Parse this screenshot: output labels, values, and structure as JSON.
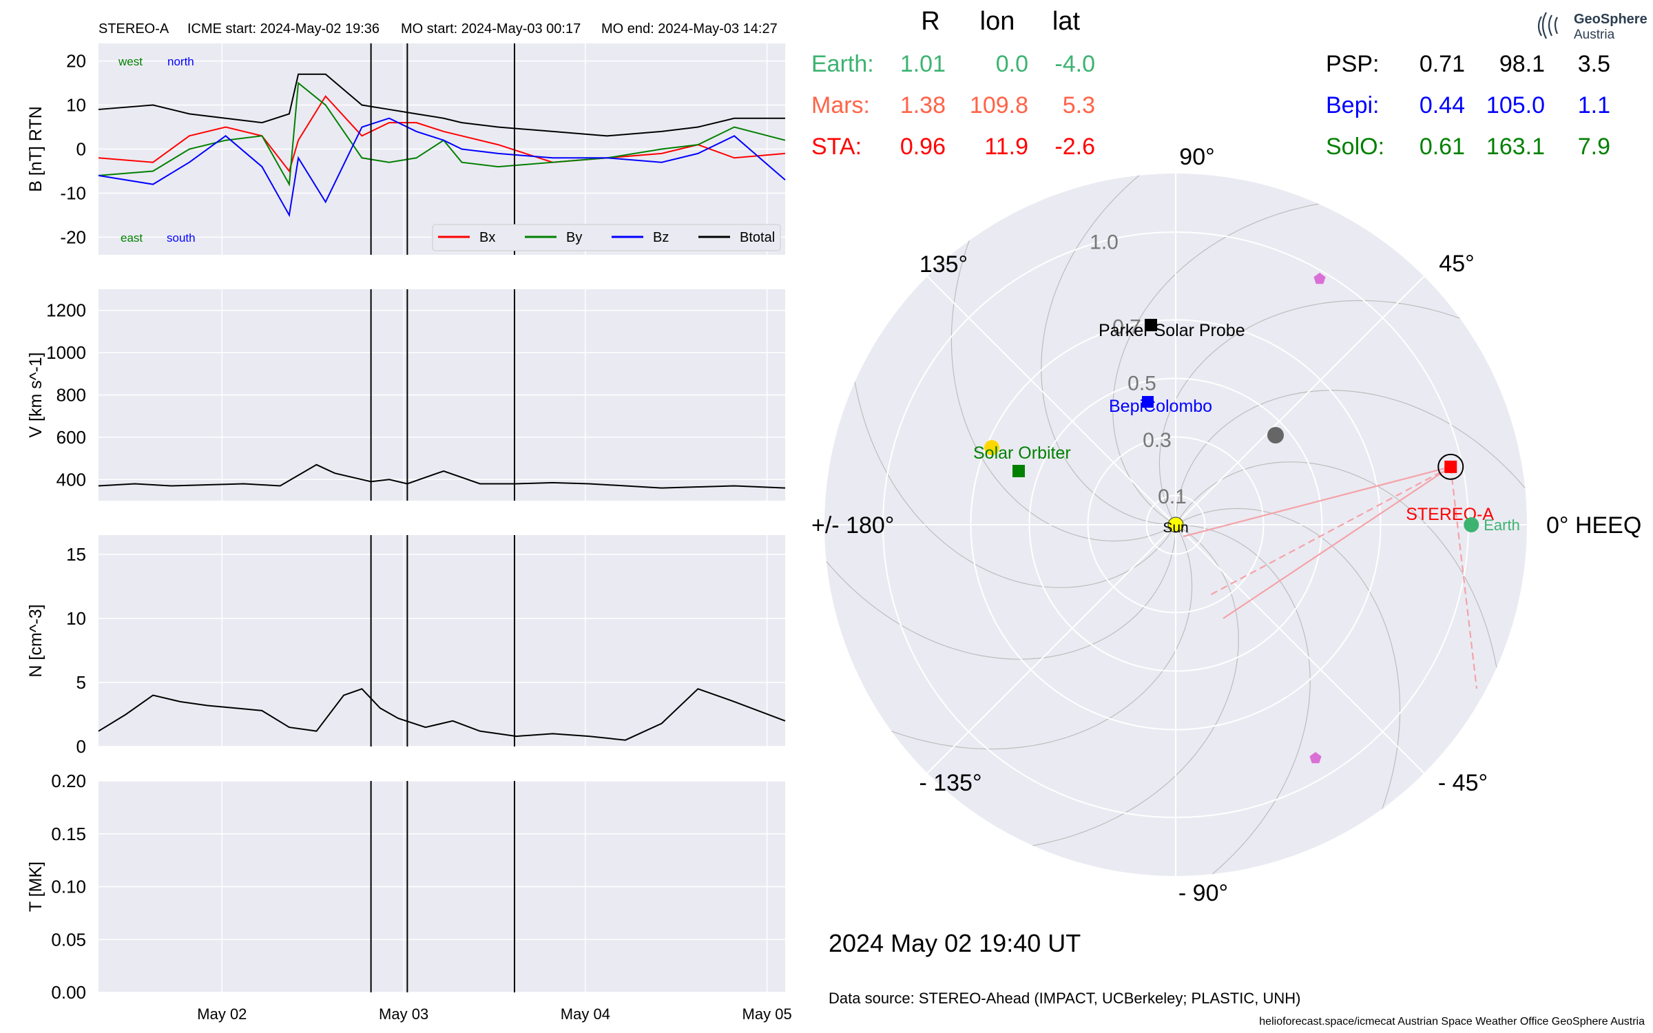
{
  "header": {
    "spacecraft": "STEREO-A",
    "icme_start": "ICME start: 2024-May-02 19:36",
    "mo_start": "MO start: 2024-May-03 00:17",
    "mo_end": "MO end: 2024-May-03 14:27"
  },
  "logo": {
    "line1": "GeoSphere",
    "line2": "Austria"
  },
  "colors": {
    "panel_bg": "#eaeaf2",
    "bx": "#ff0000",
    "by": "#008000",
    "bz": "#0000ff",
    "btotal": "#000000",
    "earth": "#3cb371",
    "mars": "#ff6347",
    "sta": "#ff0000",
    "psp": "#000000",
    "bepi": "#0000ff",
    "solo": "#008000"
  },
  "position_table": {
    "columns": [
      "R",
      "lon",
      "lat"
    ],
    "left_rows": [
      {
        "name": "Earth:",
        "r": "1.01",
        "lon": "0.0",
        "lat": "-4.0",
        "color": "#3cb371"
      },
      {
        "name": "Mars:",
        "r": "1.38",
        "lon": "109.8",
        "lat": "5.3",
        "color": "#ff6347"
      },
      {
        "name": "STA:",
        "r": "0.96",
        "lon": "11.9",
        "lat": "-2.6",
        "color": "#ff0000"
      }
    ],
    "right_rows": [
      {
        "name": "PSP:",
        "r": "0.71",
        "lon": "98.1",
        "lat": "3.5",
        "color": "#000000"
      },
      {
        "name": "Bepi:",
        "r": "0.44",
        "lon": "105.0",
        "lat": "1.1",
        "color": "#0000ff"
      },
      {
        "name": "SolO:",
        "r": "0.61",
        "lon": "163.1",
        "lat": "7.9",
        "color": "#008000"
      }
    ]
  },
  "timestamp": "2024 May 02  19:40 UT",
  "data_source": "Data source: STEREO-Ahead (IMPACT, UCBerkeley; PLASTIC, UNH)",
  "footer": "helioforecast.space/icmecat   Austrian Space Weather Office   GeoSphere Austria",
  "chart_data": [
    {
      "type": "line",
      "ylabel": "B [nT] RTN",
      "ylim": [
        -24,
        24
      ],
      "yticks": [
        20,
        10,
        0,
        -10,
        -20
      ],
      "annotations": {
        "top_left": [
          "west",
          "north"
        ],
        "bottom_left": [
          "east",
          "south"
        ]
      },
      "legend": {
        "placement": "bottom-right",
        "entries": [
          "Bx",
          "By",
          "Bz",
          "Btotal"
        ]
      },
      "series": [
        {
          "name": "Bx",
          "color": "#ff0000",
          "x": [
            0,
            0.3,
            0.5,
            0.7,
            0.9,
            1.05,
            1.1,
            1.25,
            1.45,
            1.6,
            1.75,
            1.9,
            2.0,
            2.2,
            2.5,
            2.8,
            3.1,
            3.3,
            3.5,
            3.78
          ],
          "y": [
            -2,
            -3,
            3,
            5,
            3,
            -5,
            2,
            12,
            3,
            6,
            6,
            4,
            3,
            1,
            -3,
            -2,
            -1,
            1,
            -2,
            -1
          ]
        },
        {
          "name": "By",
          "color": "#008000",
          "x": [
            0,
            0.3,
            0.5,
            0.7,
            0.9,
            1.05,
            1.1,
            1.25,
            1.45,
            1.6,
            1.75,
            1.9,
            2.0,
            2.2,
            2.5,
            2.8,
            3.1,
            3.3,
            3.5,
            3.78
          ],
          "y": [
            -6,
            -5,
            0,
            2,
            3,
            -8,
            15,
            10,
            -2,
            -3,
            -2,
            2,
            -3,
            -4,
            -3,
            -2,
            0,
            1,
            5,
            2
          ]
        },
        {
          "name": "Bz",
          "color": "#0000ff",
          "x": [
            0,
            0.3,
            0.5,
            0.7,
            0.9,
            1.05,
            1.1,
            1.25,
            1.45,
            1.6,
            1.75,
            1.9,
            2.0,
            2.2,
            2.5,
            2.8,
            3.1,
            3.3,
            3.5,
            3.78
          ],
          "y": [
            -6,
            -8,
            -3,
            3,
            -4,
            -15,
            -2,
            -12,
            5,
            7,
            4,
            2,
            0,
            -1,
            -2,
            -2,
            -3,
            -1,
            3,
            -7
          ]
        },
        {
          "name": "Btotal",
          "color": "#000000",
          "x": [
            0,
            0.3,
            0.5,
            0.7,
            0.9,
            1.05,
            1.1,
            1.25,
            1.45,
            1.6,
            1.75,
            1.9,
            2.0,
            2.2,
            2.5,
            2.8,
            3.1,
            3.3,
            3.5,
            3.78
          ],
          "y": [
            9,
            10,
            8,
            7,
            6,
            8,
            17,
            17,
            10,
            9,
            8,
            7,
            6,
            5,
            4,
            3,
            4,
            5,
            7,
            7
          ]
        }
      ]
    },
    {
      "type": "line",
      "ylabel": "V [km s^-1]",
      "ylim": [
        300,
        1300
      ],
      "yticks": [
        1200,
        1000,
        800,
        600,
        400
      ],
      "series": [
        {
          "name": "V",
          "color": "#000000",
          "x": [
            0.0,
            0.2,
            0.4,
            0.6,
            0.8,
            1.0,
            1.2,
            1.3,
            1.45,
            1.5,
            1.6,
            1.7,
            1.9,
            2.1,
            2.3,
            2.5,
            2.7,
            2.9,
            3.1,
            3.3,
            3.5,
            3.78
          ],
          "y": [
            370,
            380,
            370,
            375,
            380,
            370,
            470,
            430,
            400,
            390,
            400,
            380,
            440,
            380,
            380,
            385,
            380,
            370,
            360,
            365,
            370,
            360
          ]
        }
      ]
    },
    {
      "type": "line",
      "ylabel": "N [cm^-3]",
      "ylim": [
        0,
        16.5
      ],
      "yticks": [
        15,
        10,
        5,
        0
      ],
      "series": [
        {
          "name": "N",
          "color": "#000000",
          "x": [
            0.0,
            0.15,
            0.3,
            0.45,
            0.6,
            0.75,
            0.9,
            1.05,
            1.2,
            1.35,
            1.45,
            1.55,
            1.65,
            1.8,
            1.95,
            2.1,
            2.3,
            2.5,
            2.7,
            2.9,
            3.1,
            3.3,
            3.5,
            3.78
          ],
          "y": [
            1.2,
            2.5,
            4,
            3.5,
            3.2,
            3,
            2.8,
            1.5,
            1.2,
            4,
            4.5,
            3,
            2.2,
            1.5,
            2,
            1.2,
            0.8,
            1,
            0.8,
            0.5,
            1.8,
            4.5,
            3.5,
            2
          ]
        }
      ]
    },
    {
      "type": "line",
      "ylabel": "T [MK]",
      "ylim": [
        0,
        0.2
      ],
      "yticks": [
        "0.20",
        "0.15",
        "0.10",
        "0.05",
        "0.00"
      ],
      "series": []
    }
  ],
  "shared_x": {
    "ticks": [
      {
        "value": 0.68,
        "label": "May 02"
      },
      {
        "value": 1.68,
        "label": "May 03"
      },
      {
        "value": 2.68,
        "label": "May 04"
      },
      {
        "value": 3.68,
        "label": "May 05"
      }
    ],
    "range": [
      0,
      3.78
    ],
    "event_lines": [
      1.5,
      1.7,
      2.29
    ]
  },
  "polar_plot": {
    "angle_labels": [
      {
        "angle": 90,
        "label": "90°"
      },
      {
        "angle": 45,
        "label": "45°"
      },
      {
        "angle": 0,
        "label": "0° HEEQ"
      },
      {
        "angle": -45,
        "label": "- 45°"
      },
      {
        "angle": -90,
        "label": "- 90°"
      },
      {
        "angle": -135,
        "label": "- 135°"
      },
      {
        "angle": 180,
        "label": "+/- 180°"
      },
      {
        "angle": 135,
        "label": "135°"
      }
    ],
    "radial_labels": [
      "0.1",
      "0.3",
      "0.5",
      "0.7",
      "1.0"
    ],
    "radial_values": [
      0.1,
      0.3,
      0.5,
      0.7,
      1.0
    ],
    "objects": [
      {
        "name": "Sun",
        "r": 0,
        "lon": 0,
        "label": "Sun",
        "color": "#ffff00"
      },
      {
        "name": "STEREO-A",
        "r": 0.96,
        "lon": 11.9,
        "label": "STEREO-A",
        "color": "#ff0000"
      },
      {
        "name": "Earth",
        "r": 1.01,
        "lon": 0.0,
        "label": "Earth",
        "color": "#3cb371"
      },
      {
        "name": "Parker Solar Probe",
        "r": 0.71,
        "lon": 98.1,
        "label": "Parker Solar Probe",
        "color": "#000000"
      },
      {
        "name": "BepiColombo",
        "r": 0.44,
        "lon": 105.0,
        "label": "BepiColombo",
        "color": "#0000ff"
      },
      {
        "name": "Solar Orbiter",
        "r": 0.61,
        "lon": 163.1,
        "label": "Solar Orbiter",
        "color": "#008000"
      },
      {
        "name": "Mars",
        "r": 1.38,
        "lon": 109.8,
        "label": "",
        "color": "#ff6347"
      }
    ]
  }
}
